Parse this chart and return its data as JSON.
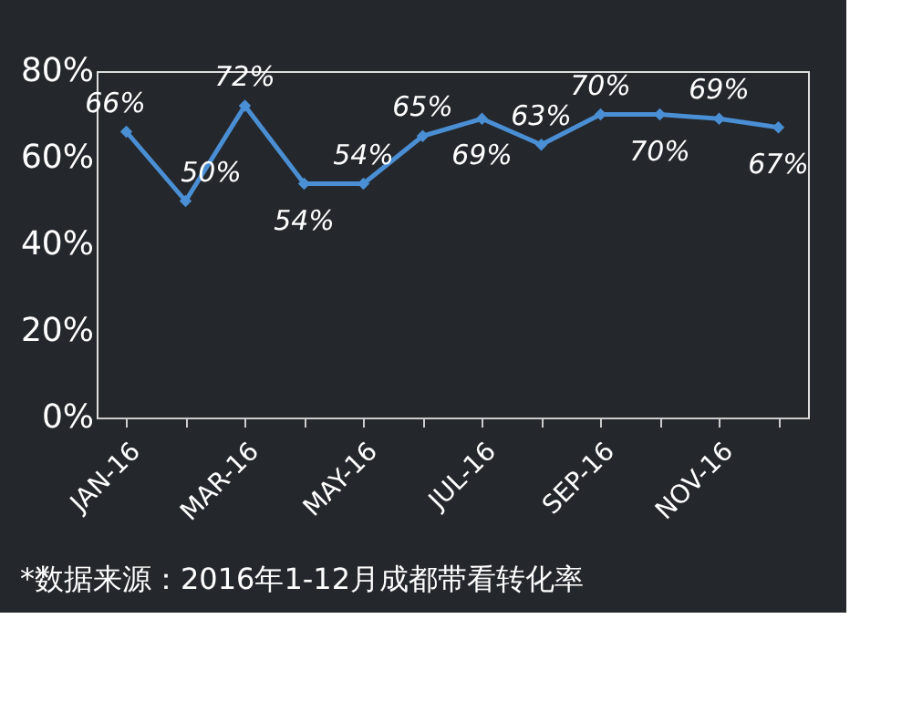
{
  "chart_data": {
    "type": "line",
    "categories": [
      "JAN-16",
      null,
      "MAR-16",
      null,
      "MAY-16",
      null,
      "JUL-16",
      null,
      "SEP-16",
      null,
      "NOV-16",
      null
    ],
    "series": [
      {
        "color": "#4a8fd4",
        "values": [
          66,
          50,
          72,
          54,
          54,
          65,
          69,
          63,
          70,
          70,
          69,
          67
        ]
      }
    ],
    "value_labels": [
      "66%",
      "50%",
      "72%",
      "54%",
      "54%",
      "65%",
      "69%",
      "63%",
      "70%",
      "70%",
      "69%",
      "67%"
    ],
    "ylim": [
      0,
      80
    ],
    "yticks": [
      {
        "value": 0,
        "label": "0%"
      },
      {
        "value": 20,
        "label": "20%"
      },
      {
        "value": 40,
        "label": "40%"
      },
      {
        "value": 60,
        "label": "60%"
      },
      {
        "value": 80,
        "label": "80%"
      }
    ],
    "marker": "diamond",
    "line_style": "solid",
    "grid": false,
    "annotations": [
      "*数据来源：2016年1-12月成都带看转化率"
    ]
  }
}
